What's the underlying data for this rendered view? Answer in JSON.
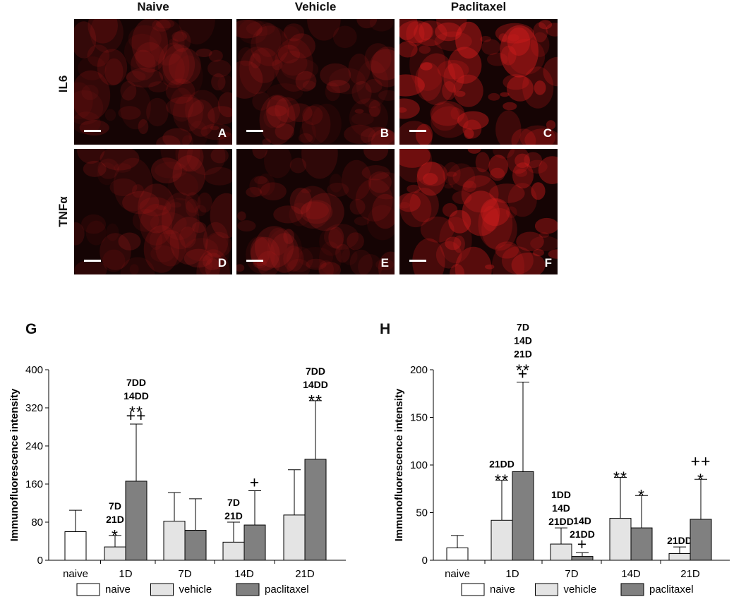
{
  "micrographs": {
    "columns": [
      "Naive",
      "Vehicle",
      "Paclitaxel"
    ],
    "rows": [
      "IL6",
      "TNFα"
    ],
    "panel_labels": [
      "A",
      "B",
      "C",
      "D",
      "E",
      "F"
    ]
  },
  "chart_data": [
    {
      "panel": "G",
      "type": "bar",
      "ylabel": "Immunofluorescence intensity",
      "ylim": [
        0,
        400
      ],
      "yticks": [
        0,
        80,
        160,
        240,
        320,
        400
      ],
      "groups": [
        {
          "label": "naive",
          "bars": [
            {
              "series": "naive",
              "value": 60,
              "err": 45,
              "annotation": []
            }
          ]
        },
        {
          "label": "1D",
          "bars": [
            {
              "series": "vehicle",
              "value": 28,
              "err": 24,
              "annotation": [
                "7D",
                "21D",
                "*"
              ]
            },
            {
              "series": "paclitaxel",
              "value": 166,
              "err": 120,
              "annotation": [
                "7DD",
                "14DD",
                "**",
                "++"
              ]
            }
          ]
        },
        {
          "label": "7D",
          "bars": [
            {
              "series": "vehicle",
              "value": 82,
              "err": 60,
              "annotation": []
            },
            {
              "series": "paclitaxel",
              "value": 63,
              "err": 66,
              "annotation": []
            }
          ]
        },
        {
          "label": "14D",
          "bars": [
            {
              "series": "vehicle",
              "value": 38,
              "err": 42,
              "annotation": [
                "7D",
                "21D"
              ]
            },
            {
              "series": "paclitaxel",
              "value": 74,
              "err": 72,
              "annotation": [
                "+"
              ]
            }
          ]
        },
        {
          "label": "21D",
          "bars": [
            {
              "series": "vehicle",
              "value": 95,
              "err": 95,
              "annotation": []
            },
            {
              "series": "paclitaxel",
              "value": 212,
              "err": 123,
              "annotation": [
                "7DD",
                "14DD",
                "**"
              ]
            }
          ]
        }
      ]
    },
    {
      "panel": "H",
      "type": "bar",
      "ylabel": "Immunofluorescence intensity",
      "ylim": [
        0,
        200
      ],
      "yticks": [
        0,
        50,
        100,
        150,
        200
      ],
      "groups": [
        {
          "label": "naive",
          "bars": [
            {
              "series": "naive",
              "value": 13,
              "err": 13,
              "annotation": []
            }
          ]
        },
        {
          "label": "1D",
          "bars": [
            {
              "series": "vehicle",
              "value": 42,
              "err": 42,
              "annotation": [
                "21DD",
                "**"
              ]
            },
            {
              "series": "paclitaxel",
              "value": 93,
              "err": 94,
              "annotation": [
                "7D",
                "14D",
                "21D",
                "**",
                "+"
              ]
            }
          ]
        },
        {
          "label": "7D",
          "bars": [
            {
              "series": "vehicle",
              "value": 17,
              "err": 17,
              "annotation": [
                "1DD",
                "14D",
                "21DD"
              ]
            },
            {
              "series": "paclitaxel",
              "value": 4,
              "err": 4,
              "annotation": [
                "14D",
                "21DD",
                "+"
              ]
            }
          ]
        },
        {
          "label": "14D",
          "bars": [
            {
              "series": "vehicle",
              "value": 44,
              "err": 43,
              "annotation": [
                "**"
              ]
            },
            {
              "series": "paclitaxel",
              "value": 34,
              "err": 34,
              "annotation": [
                "*"
              ]
            }
          ]
        },
        {
          "label": "21D",
          "bars": [
            {
              "series": "vehicle",
              "value": 7,
              "err": 7,
              "annotation": [
                "21DD"
              ]
            },
            {
              "series": "paclitaxel",
              "value": 43,
              "err": 42,
              "annotation": [
                "++",
                "*"
              ]
            }
          ]
        }
      ]
    }
  ],
  "legend": [
    {
      "series": "naive",
      "label": "naive",
      "color": "#ffffff"
    },
    {
      "series": "vehicle",
      "label": "vehicle",
      "color": "#e4e4e4"
    },
    {
      "series": "paclitaxel",
      "label": "paclitaxel",
      "color": "#808080"
    }
  ]
}
